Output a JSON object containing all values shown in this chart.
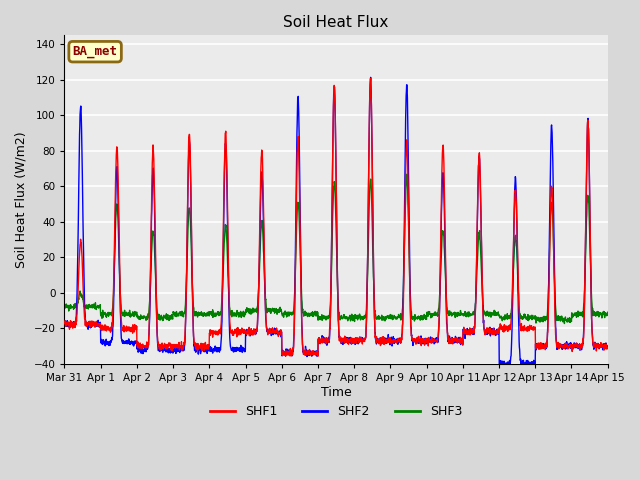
{
  "title": "Soil Heat Flux",
  "xlabel": "Time",
  "ylabel": "Soil Heat Flux (W/m2)",
  "ylim": [
    -40,
    145
  ],
  "yticks": [
    -40,
    -20,
    0,
    20,
    40,
    60,
    80,
    100,
    120,
    140
  ],
  "colors": {
    "SHF1": "red",
    "SHF2": "blue",
    "SHF3": "green"
  },
  "legend_label": "BA_met",
  "legend_label_bg": "#ffffcc",
  "legend_label_edge": "#8B6914",
  "bg_color": "#d8d8d8",
  "plot_bg": "#ebebeb",
  "grid_color": "white",
  "linewidth": 1.0,
  "x_tick_labels": [
    "Mar 31",
    "Apr 1",
    "Apr 2",
    "Apr 3",
    "Apr 4",
    "Apr 5",
    "Apr 6",
    "Apr 7",
    "Apr 8",
    "Apr 9",
    "Apr 10",
    "Apr 11",
    "Apr 12",
    "Apr 13",
    "Apr 14",
    "Apr 15"
  ],
  "num_days": 15,
  "pts_per_day": 144,
  "shf1_peaks": [
    30,
    82,
    82,
    90,
    90,
    80,
    87,
    117,
    120,
    85,
    83,
    78,
    58,
    60,
    97,
    97
  ],
  "shf2_peaks": [
    105,
    70,
    70,
    85,
    85,
    68,
    110,
    115,
    120,
    117,
    68,
    76,
    65,
    93,
    97,
    95
  ],
  "shf3_peaks": [
    0,
    50,
    35,
    48,
    38,
    40,
    51,
    63,
    64,
    65,
    35,
    34,
    32,
    51,
    55,
    55
  ],
  "shf1_troughs": [
    -18,
    -20,
    -30,
    -30,
    -22,
    -22,
    -34,
    -27,
    -27,
    -27,
    -27,
    -22,
    -20,
    -30,
    -30,
    -18
  ],
  "shf2_troughs": [
    -18,
    -28,
    -32,
    -32,
    -32,
    -22,
    -34,
    -27,
    -27,
    -27,
    -27,
    -22,
    -40,
    -30,
    -30,
    -18
  ],
  "shf3_troughs": [
    -8,
    -12,
    -14,
    -12,
    -12,
    -10,
    -12,
    -14,
    -14,
    -14,
    -12,
    -12,
    -14,
    -15,
    -12,
    -8
  ]
}
